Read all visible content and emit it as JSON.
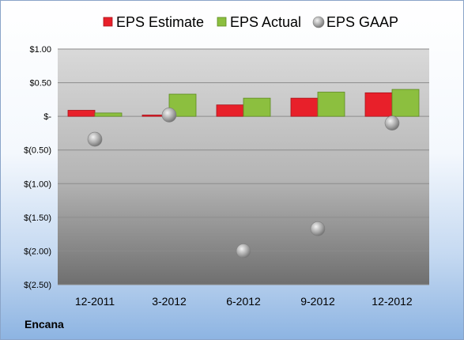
{
  "company": "Encana",
  "chart_data": {
    "type": "bar",
    "categories": [
      "12-2011",
      "3-2012",
      "6-2012",
      "9-2012",
      "12-2012"
    ],
    "series": [
      {
        "name": "EPS Estimate",
        "kind": "bar",
        "color": "#e8202a",
        "values": [
          0.09,
          0.02,
          0.17,
          0.27,
          0.35
        ]
      },
      {
        "name": "EPS Actual",
        "kind": "bar",
        "color": "#8cbf3f",
        "values": [
          0.05,
          0.33,
          0.27,
          0.36,
          0.4
        ]
      },
      {
        "name": "EPS GAAP",
        "kind": "scatter",
        "color": "#a6a6a6",
        "values": [
          -0.34,
          0.02,
          -2.0,
          -1.67,
          -0.1
        ]
      }
    ],
    "yticks": [
      "$1.00",
      "$0.50",
      "$-",
      "$(0.50)",
      "$(1.00)",
      "$(1.50)",
      "$(2.00)",
      "$(2.50)"
    ],
    "ytick_values": [
      1.0,
      0.5,
      0,
      -0.5,
      -1.0,
      -1.5,
      -2.0,
      -2.5
    ],
    "ylim": [
      -2.5,
      1.0
    ],
    "legend_position": "top",
    "grid": true
  }
}
